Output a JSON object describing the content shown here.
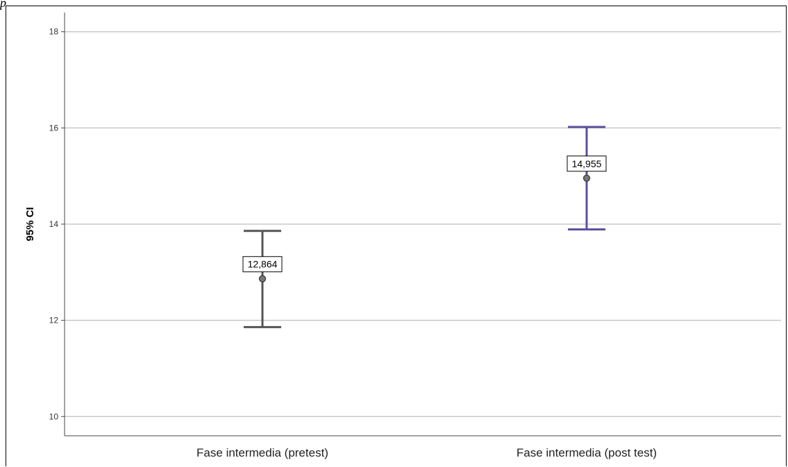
{
  "corner_mark": "p",
  "chart_data": {
    "type": "errorbar",
    "ylabel": "95% CI",
    "xlabel": "",
    "ylim": [
      9.6,
      18.4
    ],
    "yticks": [
      10,
      12,
      14,
      16,
      18
    ],
    "grid": true,
    "categories": [
      "Fase intermedia (pretest)",
      "Fase intermedia (post test)"
    ],
    "points": [
      {
        "category": "Fase intermedia (pretest)",
        "mean": 12.864,
        "mean_label": "12,864",
        "lower": 11.86,
        "upper": 13.86,
        "color": "#555555"
      },
      {
        "category": "Fase intermedia (post test)",
        "mean": 14.955,
        "mean_label": "14,955",
        "lower": 13.89,
        "upper": 16.02,
        "color": "#5a4f9c"
      }
    ]
  }
}
